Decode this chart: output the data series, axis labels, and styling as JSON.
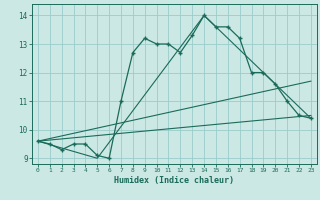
{
  "xlabel": "Humidex (Indice chaleur)",
  "background_color": "#cce8e4",
  "grid_color": "#99cccc",
  "line_color": "#1a6b5a",
  "xlim": [
    -0.5,
    23.5
  ],
  "ylim": [
    8.8,
    14.4
  ],
  "yticks": [
    9,
    10,
    11,
    12,
    13,
    14
  ],
  "xticks": [
    0,
    1,
    2,
    3,
    4,
    5,
    6,
    7,
    8,
    9,
    10,
    11,
    12,
    13,
    14,
    15,
    16,
    17,
    18,
    19,
    20,
    21,
    22,
    23
  ],
  "line1_x": [
    0,
    1,
    2,
    3,
    4,
    5,
    6,
    7,
    8,
    9,
    10,
    11,
    12,
    13,
    14,
    15,
    16,
    17,
    18,
    19,
    20,
    21,
    22,
    23
  ],
  "line1_y": [
    9.6,
    9.5,
    9.3,
    9.5,
    9.5,
    9.1,
    9.0,
    11.0,
    12.7,
    13.2,
    13.0,
    13.0,
    12.7,
    13.3,
    14.0,
    13.6,
    13.6,
    13.2,
    12.0,
    12.0,
    11.6,
    11.0,
    10.5,
    10.4
  ],
  "line2_x": [
    0,
    5,
    14,
    23
  ],
  "line2_y": [
    9.6,
    9.0,
    14.0,
    10.4
  ],
  "line3_x": [
    0,
    23
  ],
  "line3_y": [
    9.6,
    10.5
  ],
  "line4_x": [
    0,
    23
  ],
  "line4_y": [
    9.6,
    11.7
  ]
}
